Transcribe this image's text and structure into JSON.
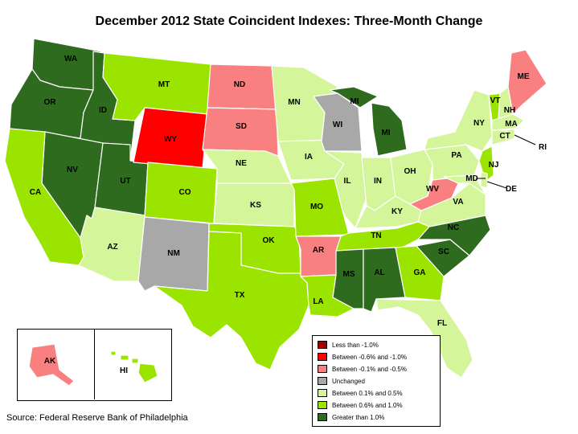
{
  "title": "December 2012 State Coincident Indexes: Three-Month Change",
  "source": "Source: Federal Reserve Bank of Philadelphia",
  "colors": {
    "lt_neg1": "#a50000",
    "neg06_1": "#ff0000",
    "neg01_05": "#f88080",
    "unchanged": "#a8a8a8",
    "pos01_05": "#d4f59a",
    "pos06_1": "#9be400",
    "gt1": "#2f6b1f"
  },
  "legend": [
    {
      "key": "lt_neg1",
      "label": "Less than -1.0%"
    },
    {
      "key": "neg06_1",
      "label": "Between -0.6% and -1.0%"
    },
    {
      "key": "neg01_05",
      "label": "Between -0.1% and -0.5%"
    },
    {
      "key": "unchanged",
      "label": "Unchanged"
    },
    {
      "key": "pos01_05",
      "label": "Between 0.1% and 0.5%"
    },
    {
      "key": "pos06_1",
      "label": "Between 0.6% and 1.0%"
    },
    {
      "key": "gt1",
      "label": "Greater than 1.0%"
    }
  ],
  "states": {
    "WA": "gt1",
    "OR": "gt1",
    "ID": "gt1",
    "NV": "gt1",
    "UT": "gt1",
    "MI": "gt1",
    "MS": "gt1",
    "AL": "gt1",
    "NC": "gt1",
    "SC": "gt1",
    "CA": "pos06_1",
    "MT": "pos06_1",
    "CO": "pos06_1",
    "OK": "pos06_1",
    "TX": "pos06_1",
    "MO": "pos06_1",
    "LA": "pos06_1",
    "TN": "pos06_1",
    "GA": "pos06_1",
    "VT": "pos06_1",
    "NJ": "pos06_1",
    "HI": "pos06_1",
    "AZ": "pos01_05",
    "NE": "pos01_05",
    "KS": "pos01_05",
    "MN": "pos01_05",
    "IA": "pos01_05",
    "IL": "pos01_05",
    "IN": "pos01_05",
    "OH": "pos01_05",
    "KY": "pos01_05",
    "VA": "pos01_05",
    "PA": "pos01_05",
    "NY": "pos01_05",
    "NH": "pos01_05",
    "MA": "pos01_05",
    "CT": "pos01_05",
    "RI": "pos01_05",
    "DE": "pos01_05",
    "MD": "pos01_05",
    "FL": "pos01_05",
    "ND": "neg01_05",
    "SD": "neg01_05",
    "AR": "neg01_05",
    "WV": "neg01_05",
    "ME": "neg01_05",
    "AK": "neg01_05",
    "WY": "neg06_1",
    "NM": "unchanged",
    "WI": "unchanged"
  },
  "state_labels": [
    "WA",
    "OR",
    "ID",
    "NV",
    "CA",
    "MT",
    "WY",
    "UT",
    "AZ",
    "CO",
    "NM",
    "ND",
    "SD",
    "NE",
    "KS",
    "OK",
    "TX",
    "MN",
    "IA",
    "MO",
    "AR",
    "LA",
    "WI",
    "IL",
    "MI",
    "MI",
    "IN",
    "OH",
    "KY",
    "TN",
    "MS",
    "AL",
    "GA",
    "FL",
    "SC",
    "NC",
    "VA",
    "WV",
    "PA",
    "NY",
    "VT",
    "NH",
    "ME",
    "MA",
    "CT",
    "RI",
    "NJ",
    "DE",
    "MD",
    "AK",
    "HI"
  ]
}
